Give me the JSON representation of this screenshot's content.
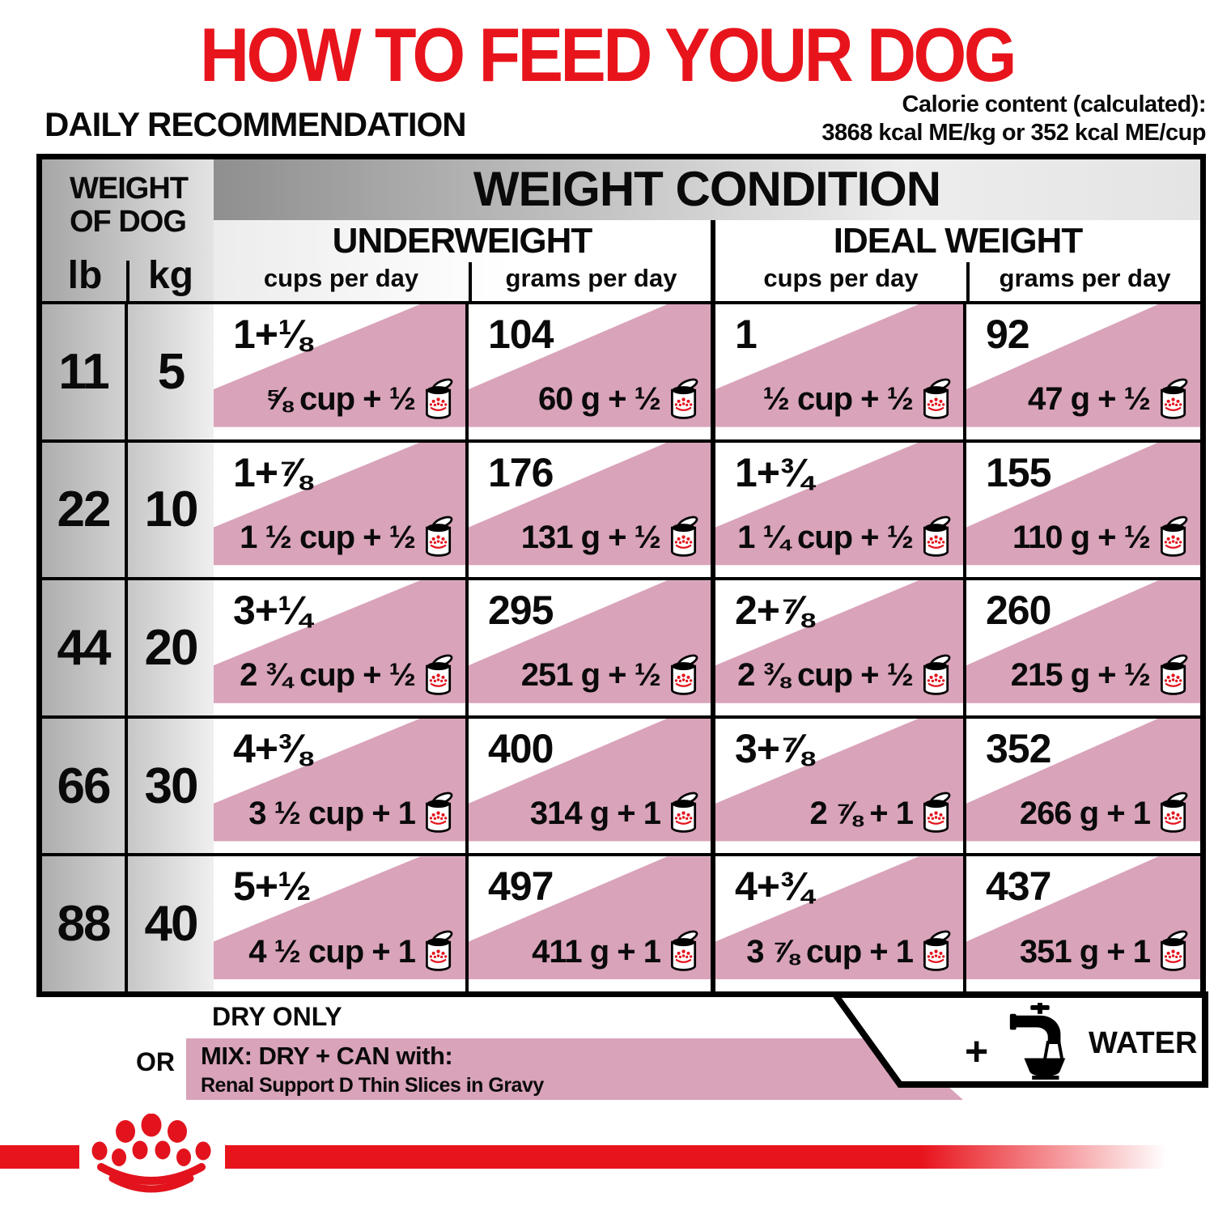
{
  "title": "HOW TO FEED YOUR DOG",
  "section_heading": "DAILY RECOMMENDATION",
  "calorie_content": {
    "line1": "Calorie content (calculated):",
    "line2": "3868 kcal ME/kg or 352 kcal ME/cup"
  },
  "colors": {
    "accent_red": "#e8141c",
    "mix_pink": "#d9a3ba"
  },
  "icons": {
    "can": "can-icon",
    "faucet": "water-faucet-icon",
    "crown": "royal-canin-crown-logo"
  },
  "table": {
    "weight_header_line1": "WEIGHT",
    "weight_header_line2": "OF DOG",
    "unit_lb": "lb",
    "unit_kg": "kg",
    "condition_header": "WEIGHT CONDITION",
    "group_underweight": "UNDERWEIGHT",
    "group_ideal": "IDEAL WEIGHT",
    "col_cups": "cups per day",
    "col_grams": "grams per day",
    "rows": [
      {
        "lb": "11",
        "kg": "5",
        "uw_cups_dry": "1+⅛",
        "uw_cups_mix": "⅝ cup + ½",
        "uw_grams_dry": "104",
        "uw_grams_mix": "60 g + ½",
        "iw_cups_dry": "1",
        "iw_cups_mix": "½ cup + ½",
        "iw_grams_dry": "92",
        "iw_grams_mix": "47 g + ½"
      },
      {
        "lb": "22",
        "kg": "10",
        "uw_cups_dry": "1+⅞",
        "uw_cups_mix": "1 ½ cup + ½",
        "uw_grams_dry": "176",
        "uw_grams_mix": "131 g + ½",
        "iw_cups_dry": "1+¾",
        "iw_cups_mix": "1 ¼ cup + ½",
        "iw_grams_dry": "155",
        "iw_grams_mix": "110 g + ½"
      },
      {
        "lb": "44",
        "kg": "20",
        "uw_cups_dry": "3+¼",
        "uw_cups_mix": "2 ¾ cup + ½",
        "uw_grams_dry": "295",
        "uw_grams_mix": "251 g + ½",
        "iw_cups_dry": "2+⅞",
        "iw_cups_mix": "2 ⅜ cup + ½",
        "iw_grams_dry": "260",
        "iw_grams_mix": "215 g + ½"
      },
      {
        "lb": "66",
        "kg": "30",
        "uw_cups_dry": "4+⅜",
        "uw_cups_mix": "3 ½ cup + 1",
        "uw_grams_dry": "400",
        "uw_grams_mix": "314 g + 1",
        "iw_cups_dry": "3+⅞",
        "iw_cups_mix": "2 ⅞ + 1",
        "iw_grams_dry": "352",
        "iw_grams_mix": "266 g + 1"
      },
      {
        "lb": "88",
        "kg": "40",
        "uw_cups_dry": "5+½",
        "uw_cups_mix": "4 ½ cup + 1",
        "uw_grams_dry": "497",
        "uw_grams_mix": "411 g + 1",
        "iw_cups_dry": "4+¾",
        "iw_cups_mix": "3 ⅞ cup + 1",
        "iw_grams_dry": "437",
        "iw_grams_mix": "351 g + 1"
      }
    ]
  },
  "legend": {
    "dry_only": "DRY ONLY",
    "or": "OR",
    "mix_title": "MIX: DRY + CAN with:",
    "mix_subtitle": "Renal Support D Thin Slices in Gravy",
    "plus": "+",
    "water": "WATER"
  }
}
